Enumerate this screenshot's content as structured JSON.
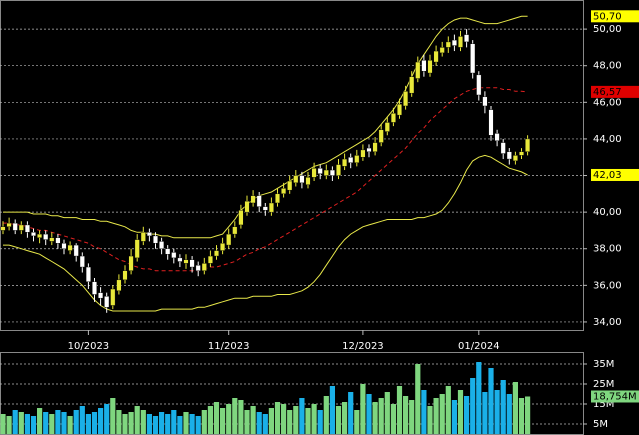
{
  "chart_data": [
    {
      "type": "candlestick",
      "categories": [
        null,
        null,
        null,
        null,
        null,
        null,
        null,
        null,
        null,
        null,
        null,
        null,
        null,
        null,
        "10/2023",
        null,
        null,
        null,
        null,
        null,
        null,
        null,
        null,
        null,
        null,
        null,
        null,
        null,
        null,
        null,
        null,
        null,
        null,
        null,
        null,
        null,
        null,
        "11/2023",
        null,
        null,
        null,
        null,
        null,
        null,
        null,
        null,
        null,
        null,
        null,
        null,
        null,
        null,
        null,
        null,
        null,
        null,
        null,
        null,
        null,
        "12/2023",
        null,
        null,
        null,
        null,
        null,
        null,
        null,
        null,
        null,
        null,
        null,
        null,
        null,
        null,
        null,
        null,
        null,
        null,
        "01/2024",
        null,
        null,
        null,
        null,
        null,
        null,
        null,
        null
      ],
      "open": [
        39.0,
        39.2,
        39.4,
        39.0,
        39.3,
        38.9,
        38.6,
        38.8,
        38.4,
        38.6,
        38.3,
        37.9,
        38.2,
        37.6,
        37.0,
        36.2,
        35.6,
        35.4,
        34.9,
        35.7,
        36.3,
        36.8,
        37.5,
        38.4,
        38.9,
        38.7,
        38.4,
        38.0,
        37.8,
        37.5,
        37.2,
        37.4,
        37.1,
        36.8,
        37.2,
        37.6,
        37.9,
        38.2,
        38.8,
        39.3,
        40.0,
        40.5,
        40.9,
        40.3,
        40.0,
        40.5,
        41.0,
        41.2,
        41.6,
        42.0,
        41.5,
        41.9,
        42.4,
        42.0,
        42.3,
        42.0,
        42.5,
        43.0,
        42.7,
        43.0,
        43.5,
        43.3,
        43.8,
        44.4,
        44.9,
        45.3,
        45.8,
        46.5,
        47.3,
        48.3,
        47.6,
        48.2,
        48.7,
        49.0,
        49.4,
        49.0,
        49.7,
        49.2,
        47.5,
        46.3,
        45.6,
        44.3,
        43.8,
        43.3,
        42.8,
        43.1,
        43.3
      ],
      "high": [
        39.5,
        39.7,
        39.6,
        39.5,
        39.5,
        39.1,
        39.0,
        39.0,
        38.9,
        38.8,
        38.5,
        38.4,
        38.3,
        37.8,
        37.2,
        36.4,
        35.9,
        35.6,
        36.0,
        36.6,
        37.1,
        38.0,
        38.8,
        39.2,
        39.1,
        38.9,
        38.6,
        38.2,
        38.0,
        37.7,
        37.7,
        37.6,
        37.3,
        37.5,
        37.9,
        38.2,
        38.6,
        39.1,
        39.5,
        40.4,
        40.9,
        41.2,
        41.1,
        40.5,
        40.8,
        41.3,
        41.6,
        42.0,
        42.3,
        42.2,
        42.2,
        42.7,
        42.6,
        42.6,
        42.5,
        42.9,
        43.2,
        43.2,
        43.4,
        43.7,
        43.7,
        44.1,
        44.8,
        45.2,
        45.7,
        46.2,
        46.9,
        47.7,
        48.5,
        48.6,
        48.6,
        49.1,
        49.3,
        49.6,
        49.7,
        49.9,
        50.0,
        49.4,
        47.7,
        46.6,
        45.8,
        44.5,
        44.0,
        43.5,
        43.3,
        43.5,
        44.2
      ],
      "low": [
        38.8,
        39.0,
        38.8,
        38.8,
        38.6,
        38.4,
        38.3,
        38.2,
        38.2,
        38.0,
        37.7,
        37.7,
        37.3,
        36.7,
        35.8,
        35.1,
        34.9,
        34.5,
        34.7,
        35.5,
        36.1,
        36.6,
        37.3,
        38.2,
        38.4,
        38.0,
        37.7,
        37.4,
        37.2,
        37.0,
        36.9,
        36.7,
        36.5,
        36.6,
        37.0,
        37.4,
        37.7,
        38.0,
        38.6,
        39.1,
        39.8,
        40.3,
        40.0,
        39.8,
        39.8,
        40.3,
        40.8,
        41.0,
        41.4,
        41.3,
        41.3,
        41.7,
        41.8,
        41.8,
        41.7,
        41.8,
        42.3,
        42.4,
        42.5,
        42.8,
        43.0,
        43.1,
        43.6,
        44.2,
        44.7,
        45.1,
        45.6,
        46.3,
        47.1,
        47.4,
        47.4,
        48.0,
        48.5,
        48.7,
        48.8,
        48.8,
        49.0,
        47.3,
        46.1,
        45.4,
        43.9,
        43.6,
        42.9,
        42.6,
        42.6,
        42.9,
        43.1
      ],
      "close": [
        39.2,
        39.4,
        39.0,
        39.3,
        38.9,
        38.7,
        38.8,
        38.5,
        38.6,
        38.3,
        38.0,
        38.2,
        37.6,
        37.0,
        36.2,
        35.5,
        35.3,
        34.8,
        35.8,
        36.3,
        36.8,
        37.6,
        38.5,
        38.9,
        38.7,
        38.3,
        38.0,
        37.7,
        37.5,
        37.3,
        37.4,
        37.0,
        36.8,
        37.2,
        37.6,
        37.9,
        38.3,
        38.8,
        39.2,
        40.1,
        40.6,
        40.9,
        40.3,
        40.1,
        40.5,
        41.0,
        41.3,
        41.7,
        42.0,
        41.6,
        41.9,
        42.4,
        42.1,
        42.3,
        42.0,
        42.6,
        42.9,
        42.7,
        43.1,
        43.4,
        43.3,
        43.8,
        44.5,
        44.9,
        45.4,
        45.9,
        46.6,
        47.4,
        48.2,
        47.7,
        48.3,
        48.8,
        49.0,
        49.3,
        49.1,
        49.6,
        49.3,
        47.6,
        46.4,
        45.8,
        44.2,
        43.9,
        43.2,
        42.9,
        43.1,
        43.3,
        44.0
      ],
      "up_color": "#e8e83a",
      "down_color": "#ffffff",
      "lines": [
        {
          "color": "#e8e84a",
          "dashed": false,
          "values": [
            40.0,
            40.0,
            40.0,
            40.0,
            40.0,
            39.9,
            39.9,
            39.9,
            39.8,
            39.8,
            39.7,
            39.7,
            39.7,
            39.6,
            39.6,
            39.6,
            39.5,
            39.5,
            39.4,
            39.3,
            39.2,
            39.0,
            38.9,
            38.9,
            38.8,
            38.8,
            38.7,
            38.7,
            38.6,
            38.6,
            38.6,
            38.6,
            38.6,
            38.6,
            38.6,
            38.7,
            38.8,
            39.2,
            39.6,
            40.1,
            40.4,
            40.7,
            40.9,
            41.0,
            41.1,
            41.3,
            41.5,
            41.7,
            41.9,
            42.1,
            42.3,
            42.5,
            42.6,
            42.7,
            42.9,
            43.1,
            43.3,
            43.5,
            43.7,
            43.9,
            44.1,
            44.4,
            44.8,
            45.2,
            45.6,
            46.1,
            46.7,
            47.4,
            48.1,
            48.6,
            49.1,
            49.6,
            50.0,
            50.3,
            50.5,
            50.6,
            50.6,
            50.5,
            50.4,
            50.3,
            50.3,
            50.3,
            50.4,
            50.5,
            50.6,
            50.7,
            50.7
          ]
        },
        {
          "color": "#e02020",
          "dashed": true,
          "values": [
            39.4,
            39.4,
            39.3,
            39.3,
            39.2,
            39.1,
            39.0,
            39.0,
            38.9,
            38.8,
            38.7,
            38.6,
            38.5,
            38.4,
            38.3,
            38.1,
            38.0,
            37.8,
            37.6,
            37.4,
            37.3,
            37.1,
            37.0,
            36.9,
            36.9,
            36.8,
            36.8,
            36.8,
            36.8,
            36.8,
            36.8,
            36.8,
            36.8,
            36.9,
            37.0,
            37.0,
            37.1,
            37.2,
            37.3,
            37.5,
            37.7,
            37.8,
            38.0,
            38.1,
            38.3,
            38.5,
            38.7,
            38.9,
            39.1,
            39.3,
            39.5,
            39.7,
            39.9,
            40.1,
            40.3,
            40.5,
            40.7,
            40.9,
            41.1,
            41.4,
            41.7,
            42.0,
            42.3,
            42.6,
            42.9,
            43.2,
            43.5,
            43.9,
            44.3,
            44.6,
            45.0,
            45.3,
            45.6,
            45.9,
            46.2,
            46.4,
            46.6,
            46.7,
            46.8,
            46.8,
            46.8,
            46.8,
            46.7,
            46.7,
            46.6,
            46.6,
            46.57
          ]
        },
        {
          "color": "#e8e84a",
          "dashed": false,
          "values": [
            38.2,
            38.2,
            38.1,
            38.0,
            37.9,
            37.8,
            37.7,
            37.5,
            37.3,
            37.1,
            36.9,
            36.6,
            36.3,
            36.0,
            35.6,
            35.2,
            34.9,
            34.7,
            34.6,
            34.6,
            34.6,
            34.6,
            34.6,
            34.6,
            34.6,
            34.6,
            34.7,
            34.7,
            34.7,
            34.7,
            34.7,
            34.7,
            34.8,
            34.8,
            34.9,
            35.0,
            35.1,
            35.2,
            35.3,
            35.3,
            35.3,
            35.4,
            35.4,
            35.4,
            35.4,
            35.5,
            35.5,
            35.5,
            35.6,
            35.7,
            35.9,
            36.2,
            36.6,
            37.1,
            37.6,
            38.1,
            38.5,
            38.8,
            39.0,
            39.2,
            39.3,
            39.4,
            39.5,
            39.6,
            39.6,
            39.6,
            39.6,
            39.6,
            39.7,
            39.7,
            39.8,
            39.9,
            40.1,
            40.5,
            41.0,
            41.6,
            42.3,
            42.8,
            43.0,
            43.1,
            43.0,
            42.8,
            42.6,
            42.4,
            42.3,
            42.2,
            42.03
          ]
        }
      ],
      "ylim": [
        33.56,
        51.59
      ],
      "yticks": [
        {
          "value": 34,
          "label": "34,00"
        },
        {
          "value": 36,
          "label": "36,00"
        },
        {
          "value": 38,
          "label": "38,00"
        },
        {
          "value": 40,
          "label": "40,00"
        },
        {
          "value": 42,
          "label": "42,00"
        },
        {
          "value": 44,
          "label": "44,00"
        },
        {
          "value": 46,
          "label": "46,00"
        },
        {
          "value": 48,
          "label": "48,00"
        },
        {
          "value": 50,
          "label": "50,00"
        }
      ],
      "price_labels": [
        {
          "value": 50.7,
          "label": "50,70",
          "color": "#ffff00"
        },
        {
          "value": 46.57,
          "label": "46,57",
          "color": "#e00000"
        },
        {
          "value": 42.03,
          "label": "42,03",
          "color": "#ffff00"
        }
      ],
      "grid": true
    },
    {
      "type": "bar",
      "values": [
        10,
        9,
        12,
        11,
        10,
        9,
        13,
        11,
        10,
        12,
        11,
        9,
        12,
        14,
        10,
        11,
        13,
        15,
        18,
        12,
        10,
        11,
        14,
        12,
        10,
        9,
        11,
        10,
        12,
        9,
        11,
        10,
        9,
        12,
        14,
        16,
        13,
        15,
        18,
        17,
        12,
        14,
        11,
        10,
        13,
        16,
        15,
        12,
        14,
        18,
        13,
        15,
        12,
        19,
        24,
        14,
        16,
        21,
        12,
        25,
        20,
        16,
        18,
        21,
        15,
        24,
        19,
        17,
        35,
        22,
        14,
        18,
        20,
        24,
        17,
        22,
        19,
        28,
        36,
        21,
        33,
        22,
        27,
        20,
        26,
        18,
        18.754
      ],
      "up_color": "#7fd67f",
      "down_color": "#1ab0e8",
      "ylim": [
        0,
        41
      ],
      "yticks": [
        {
          "value": 5,
          "label": "5M"
        },
        {
          "value": 15,
          "label": "15M"
        },
        {
          "value": 25,
          "label": "25M"
        },
        {
          "value": 35,
          "label": "35M"
        }
      ],
      "price_labels": [
        {
          "value": 18.754,
          "label": "18,754M",
          "color": "#7fd67f"
        }
      ],
      "grid": true
    }
  ]
}
